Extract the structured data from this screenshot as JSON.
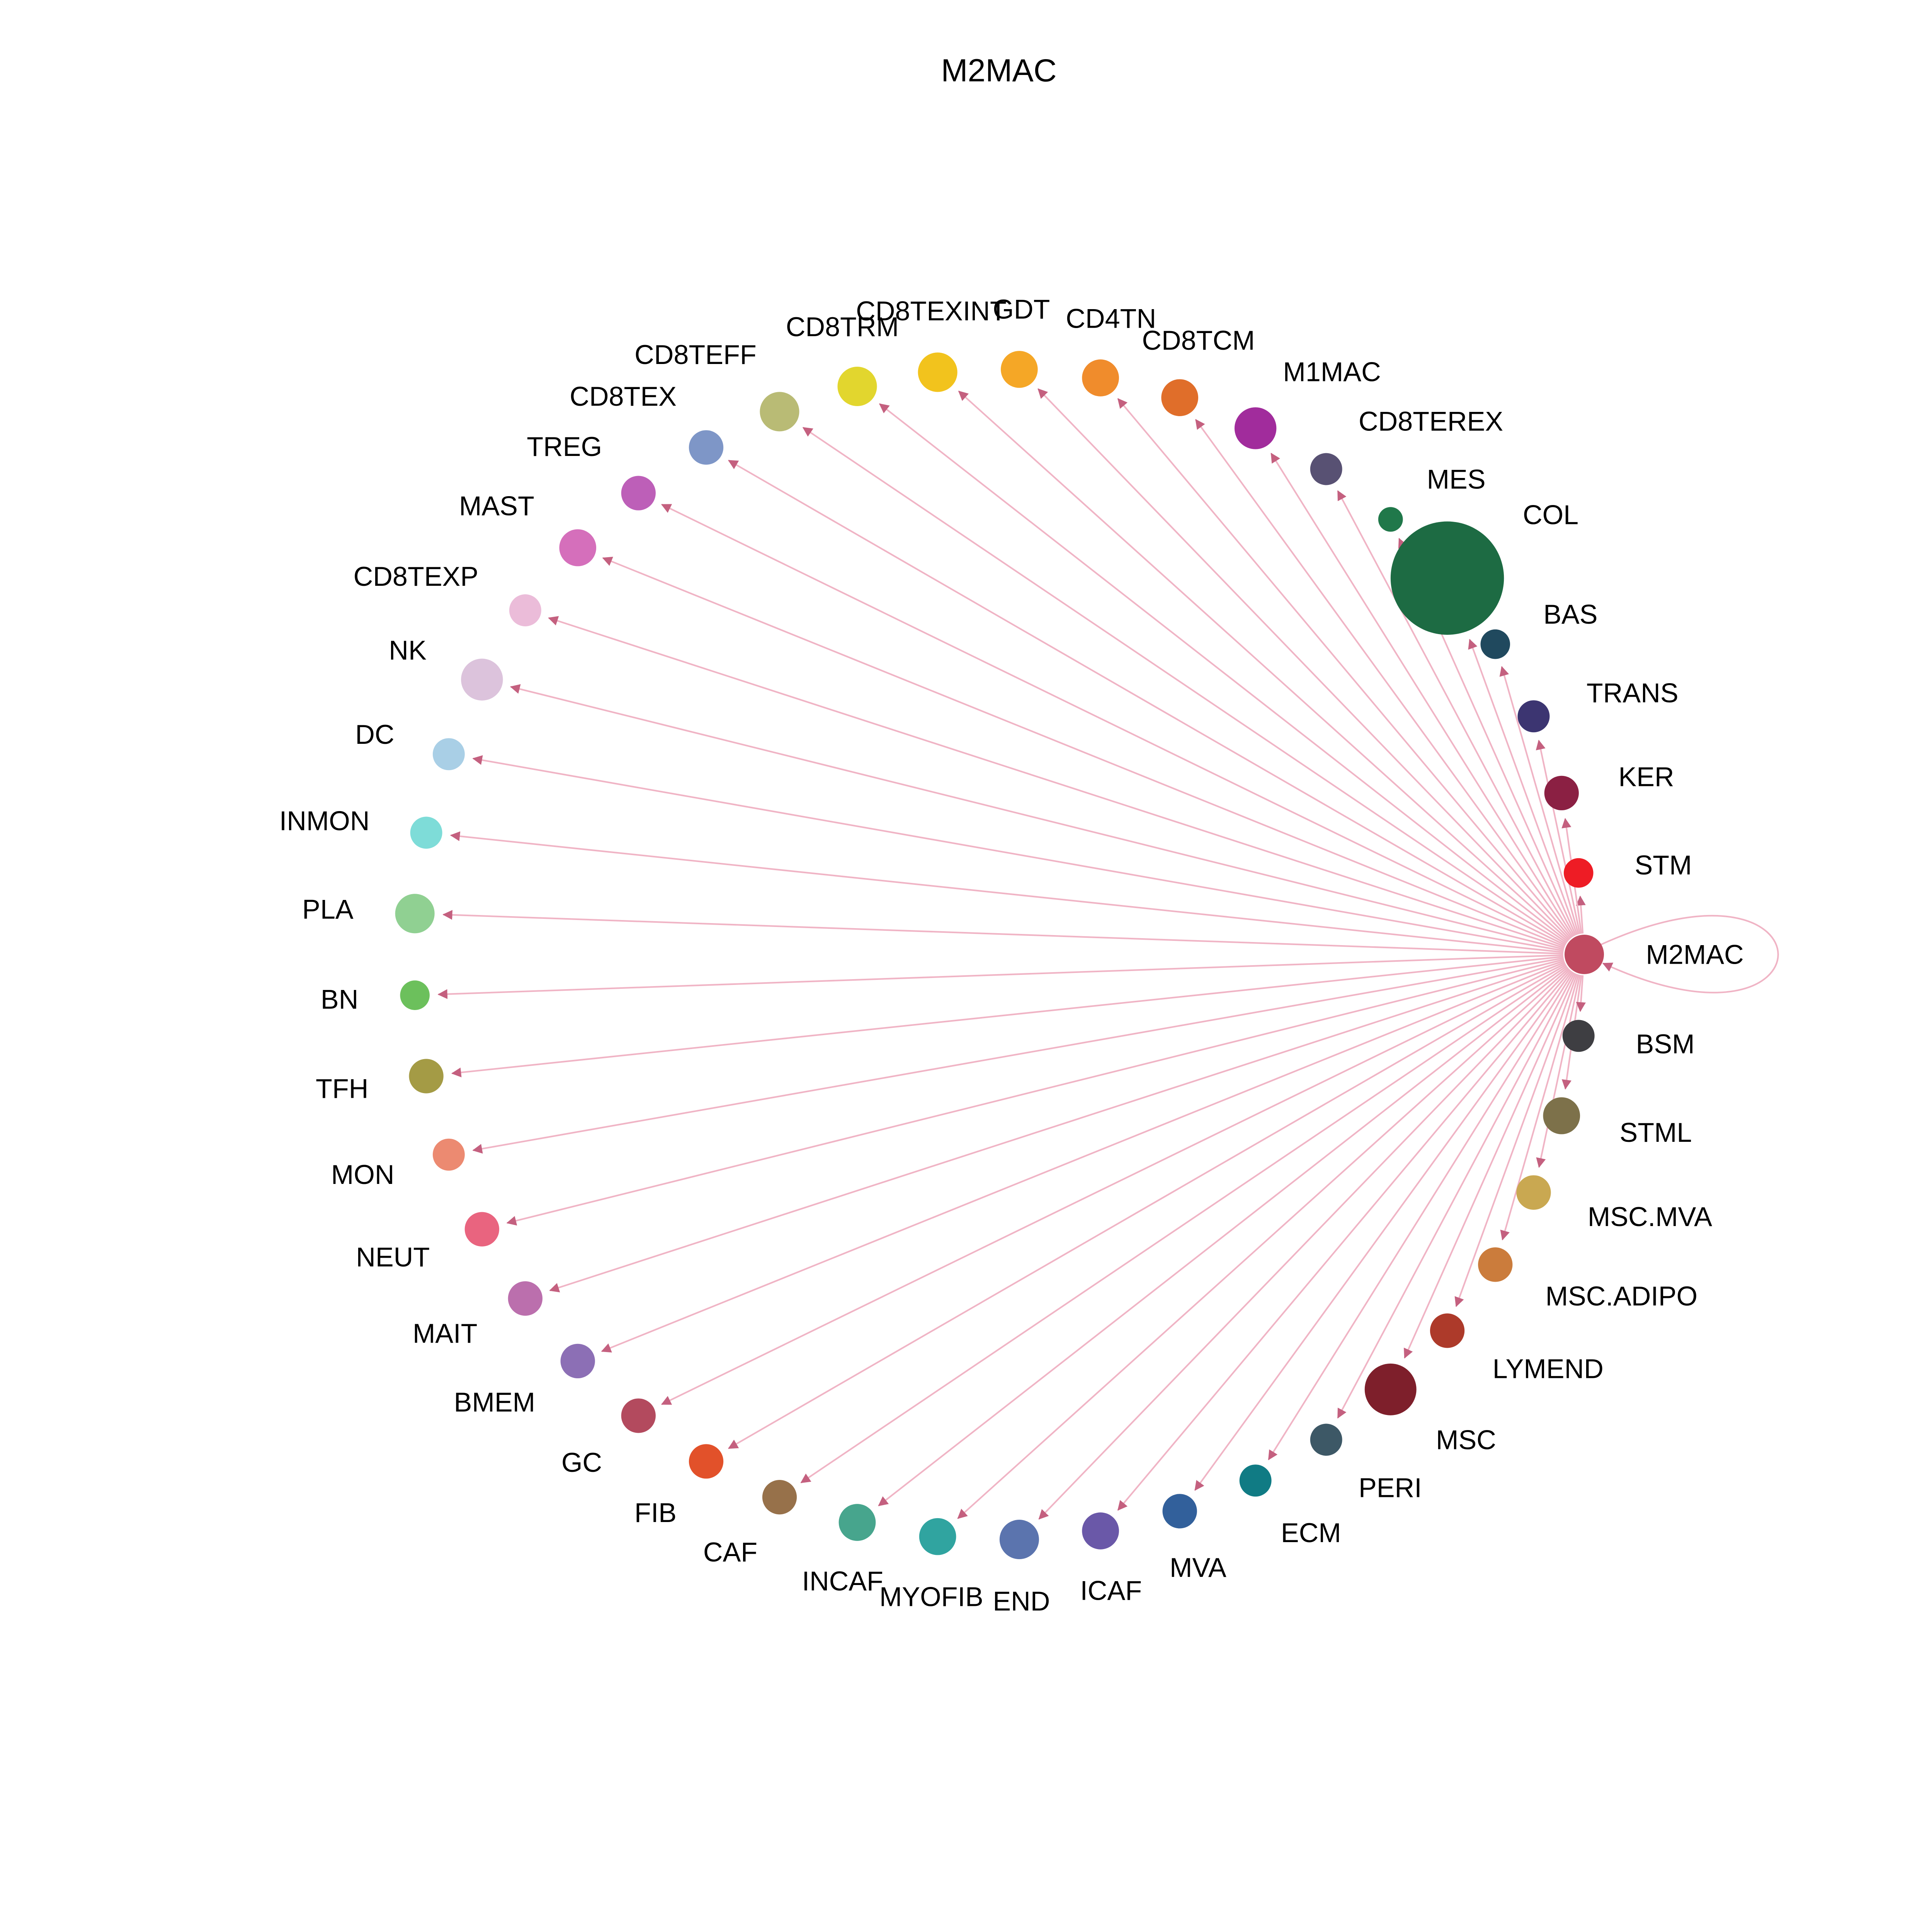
{
  "title": "M2MAC",
  "chart_data": {
    "type": "network",
    "subtype": "circular-ego-graph",
    "focus_node": "M2MAC",
    "style": {
      "background": "#ffffff",
      "edge_color": "#f0b4c5",
      "arrow_color": "#c4607f",
      "label_color": "#000000"
    },
    "layout": {
      "center_x": 0.517,
      "center_y": 0.494,
      "radius": 0.303,
      "start_angle_deg": 0,
      "direction": "counterclockwise",
      "legend": "off",
      "grid": "off"
    },
    "nodes": [
      {
        "label": "M2MAC",
        "color": "#c04a60",
        "size": 16
      },
      {
        "label": "STM",
        "color": "#ee1c25",
        "size": 12
      },
      {
        "label": "KER",
        "color": "#8b2043",
        "size": 14
      },
      {
        "label": "TRANS",
        "color": "#3c3571",
        "size": 13
      },
      {
        "label": "BAS",
        "color": "#20495e",
        "size": 12
      },
      {
        "label": "COL",
        "color": "#1d6b43",
        "size": 46
      },
      {
        "label": "MES",
        "color": "#20784a",
        "size": 10
      },
      {
        "label": "CD8TEREX",
        "color": "#585173",
        "size": 13
      },
      {
        "label": "M1MAC",
        "color": "#a12c9c",
        "size": 17
      },
      {
        "label": "CD8TCM",
        "color": "#e06e2a",
        "size": 15
      },
      {
        "label": "CD4TN",
        "color": "#f08c2c",
        "size": 15
      },
      {
        "label": "GDT",
        "color": "#f5a726",
        "size": 15
      },
      {
        "label": "CD8TEXINT",
        "color": "#f2c31d",
        "size": 16
      },
      {
        "label": "CD8TRM",
        "color": "#e2d62e",
        "size": 16
      },
      {
        "label": "CD8TEFF",
        "color": "#b9bb75",
        "size": 16
      },
      {
        "label": "CD8TEX",
        "color": "#7e96c7",
        "size": 14
      },
      {
        "label": "TREG",
        "color": "#bd5fb8",
        "size": 14
      },
      {
        "label": "MAST",
        "color": "#d56fbb",
        "size": 15
      },
      {
        "label": "CD8TEXP",
        "color": "#ebbcd9",
        "size": 13
      },
      {
        "label": "NK",
        "color": "#dcc3dc",
        "size": 17
      },
      {
        "label": "DC",
        "color": "#a9cfe6",
        "size": 13
      },
      {
        "label": "INMON",
        "color": "#7edcd8",
        "size": 13
      },
      {
        "label": "PLA",
        "color": "#90d092",
        "size": 16
      },
      {
        "label": "BN",
        "color": "#6cc05c",
        "size": 12
      },
      {
        "label": "TFH",
        "color": "#a49b45",
        "size": 14
      },
      {
        "label": "MON",
        "color": "#ec8a71",
        "size": 13
      },
      {
        "label": "NEUT",
        "color": "#e9647f",
        "size": 14
      },
      {
        "label": "MAIT",
        "color": "#bb6fad",
        "size": 14
      },
      {
        "label": "BMEM",
        "color": "#8c6fb5",
        "size": 14
      },
      {
        "label": "GC",
        "color": "#b34a5e",
        "size": 14
      },
      {
        "label": "FIB",
        "color": "#e2512a",
        "size": 14
      },
      {
        "label": "CAF",
        "color": "#97714a",
        "size": 14
      },
      {
        "label": "INCAF",
        "color": "#47a58d",
        "size": 15
      },
      {
        "label": "MYOFIB",
        "color": "#30a4a0",
        "size": 15
      },
      {
        "label": "END",
        "color": "#5b74ae",
        "size": 16
      },
      {
        "label": "ICAF",
        "color": "#6a58a8",
        "size": 15
      },
      {
        "label": "MVA",
        "color": "#32609b",
        "size": 14
      },
      {
        "label": "ECM",
        "color": "#107b84",
        "size": 13
      },
      {
        "label": "PERI",
        "color": "#3d5866",
        "size": 13
      },
      {
        "label": "MSC",
        "color": "#7e1f2b",
        "size": 21
      },
      {
        "label": "LYMEND",
        "color": "#ad3a2a",
        "size": 14
      },
      {
        "label": "MSC.ADIPO",
        "color": "#cb7c3c",
        "size": 14
      },
      {
        "label": "MSC.MVA",
        "color": "#c9a851",
        "size": 14
      },
      {
        "label": "STML",
        "color": "#7d714a",
        "size": 15
      },
      {
        "label": "BSM",
        "color": "#3e3e42",
        "size": 13
      }
    ],
    "edges": {
      "source": "M2MAC",
      "has_self_loop": true,
      "targets": [
        "M2MAC",
        "STM",
        "KER",
        "TRANS",
        "BAS",
        "COL",
        "MES",
        "CD8TEREX",
        "M1MAC",
        "CD8TCM",
        "CD4TN",
        "GDT",
        "CD8TEXINT",
        "CD8TRM",
        "CD8TEFF",
        "CD8TEX",
        "TREG",
        "MAST",
        "CD8TEXP",
        "NK",
        "DC",
        "INMON",
        "PLA",
        "BN",
        "TFH",
        "MON",
        "NEUT",
        "MAIT",
        "BMEM",
        "GC",
        "FIB",
        "CAF",
        "INCAF",
        "MYOFIB",
        "END",
        "ICAF",
        "MVA",
        "ECM",
        "PERI",
        "MSC",
        "LYMEND",
        "MSC.ADIPO",
        "MSC.MVA",
        "STML",
        "BSM"
      ]
    }
  }
}
